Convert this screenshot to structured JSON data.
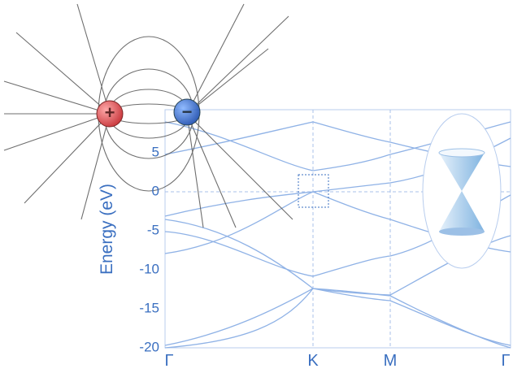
{
  "band_plot": {
    "y_label": "Energy (eV)",
    "y_ticks": [
      "5",
      "0",
      "-5",
      "-10",
      "-15",
      "-20"
    ],
    "x_labels": [
      "Γ",
      "K",
      "M",
      "Γ"
    ]
  },
  "dipole": {
    "positive": "+",
    "negative": "−"
  }
}
